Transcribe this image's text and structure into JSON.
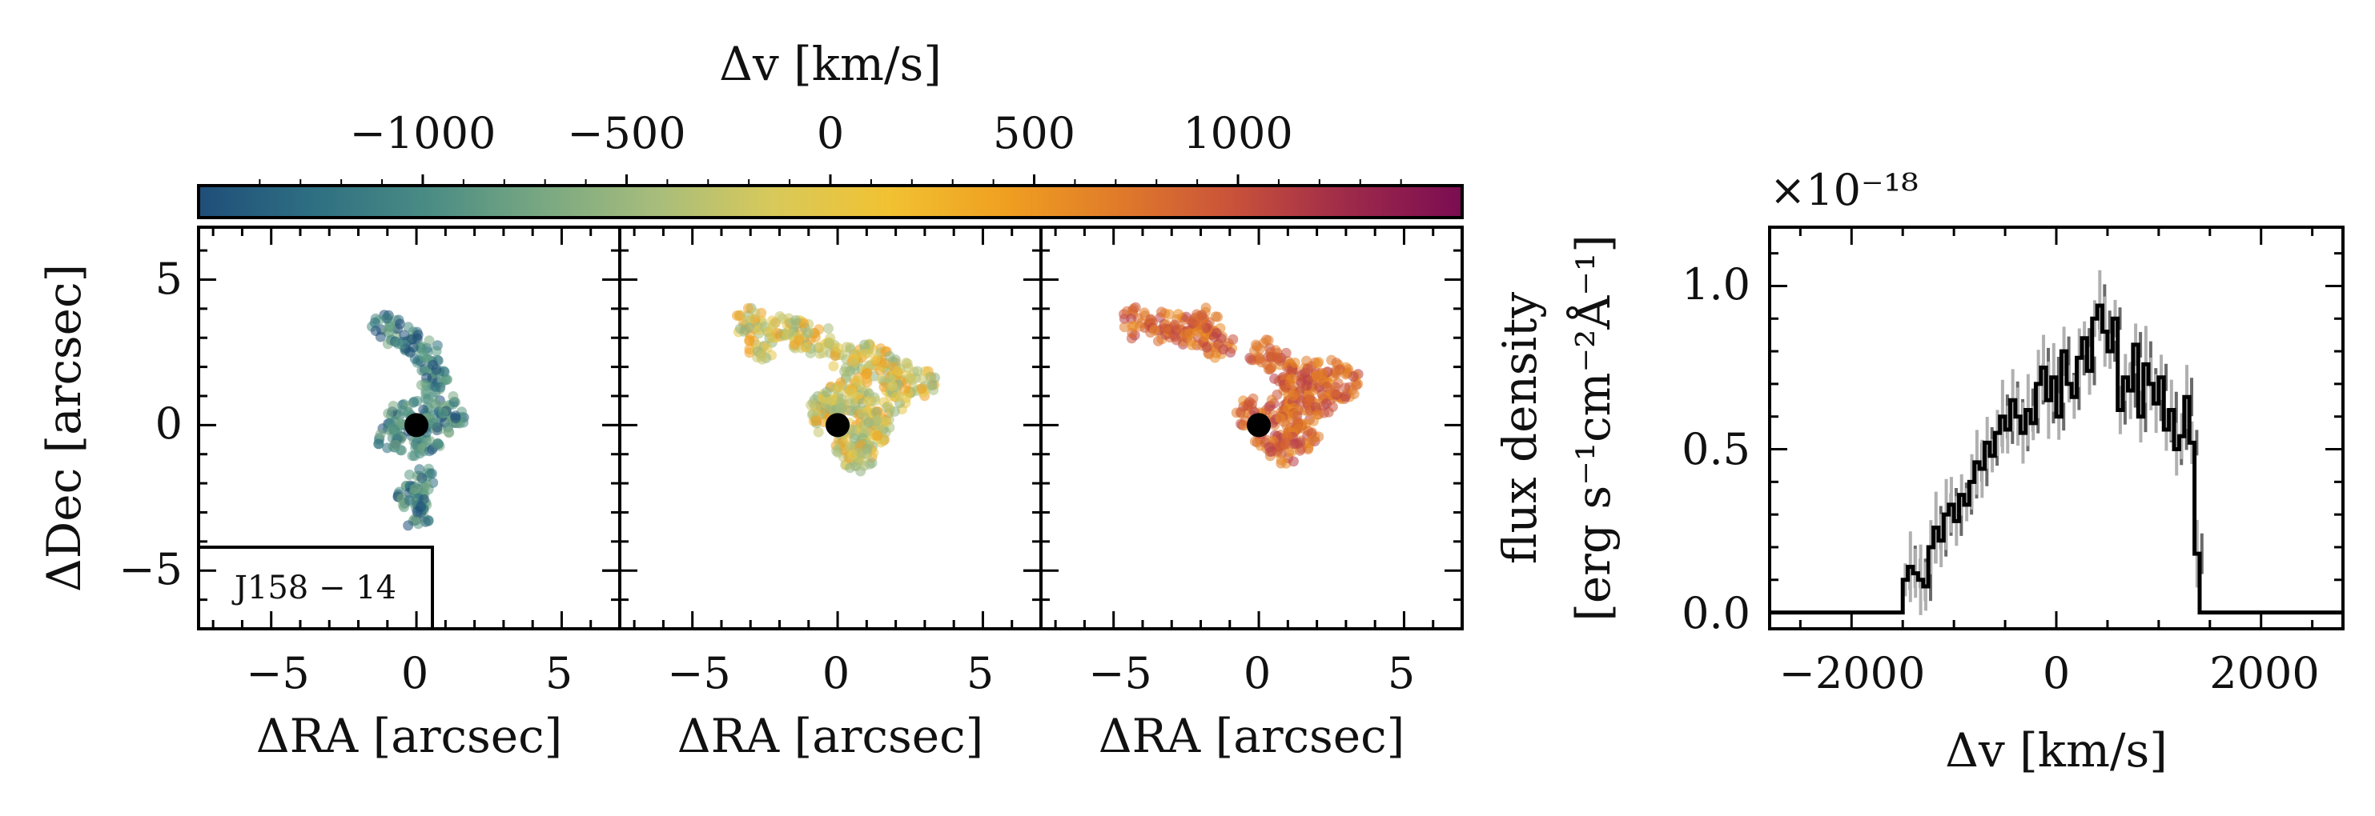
{
  "colorbar": {
    "label": "Δv [km/s]",
    "ticks": [
      -1000,
      -500,
      0,
      500,
      1000
    ],
    "tick_labels": [
      "−1000",
      "−500",
      "0",
      "500",
      "1000"
    ],
    "range": [
      -1550,
      1550
    ],
    "colormap": [
      "#1f4e79",
      "#2e6f82",
      "#4a8c84",
      "#79a882",
      "#a8bd7b",
      "#d8c95a",
      "#f1c232",
      "#f0a020",
      "#e07b2a",
      "#c9523a",
      "#9e2a4a",
      "#7a0c52"
    ]
  },
  "panels": [
    {
      "label": "J158 − 14",
      "xlabel": "ΔRA [arcsec]",
      "ylabel": "ΔDec [arcsec]",
      "xlim": [
        -7.5,
        7
      ],
      "ylim": [
        -7,
        6.8
      ],
      "xtick_labels": [
        "−5",
        "0",
        "5"
      ],
      "ytick_labels": [
        "5",
        "0",
        "−5"
      ],
      "velocity_range": "blue"
    },
    {
      "xlabel": "ΔRA [arcsec]",
      "xlim": [
        -7.5,
        7
      ],
      "ylim": [
        -7,
        6.8
      ],
      "xtick_labels": [
        "−5",
        "0",
        "5"
      ],
      "velocity_range": "green"
    },
    {
      "xlabel": "ΔRA [arcsec]",
      "xlim": [
        -7.5,
        7
      ],
      "ylim": [
        -7,
        6.8
      ],
      "xtick_labels": [
        "−5",
        "0",
        "5"
      ],
      "velocity_range": "red"
    }
  ],
  "spectrum": {
    "xlabel": "Δv [km/s]",
    "ylabel_line1": "flux density",
    "ylabel_line2": "[erg s⁻¹cm⁻²Å⁻¹]",
    "offset": "×10⁻¹⁸",
    "xtick_labels": [
      "−2000",
      "0",
      "2000"
    ],
    "ytick_labels": [
      "0.0",
      "0.5",
      "1.0"
    ]
  },
  "chart_data": [
    {
      "type": "scatter",
      "title": "",
      "label": "J158 − 14",
      "xlabel": "ΔRA [arcsec]",
      "ylabel": "ΔDec [arcsec]",
      "xlim": [
        -7.5,
        7
      ],
      "ylim": [
        -7,
        6.8
      ],
      "color": "Δv (blue-shifted, ≈ −1000 to −400 km/s)",
      "center_marker": [
        0,
        0
      ],
      "clumps": [
        [
          -1.0,
          3.3
        ],
        [
          -0.3,
          3.0
        ],
        [
          0.3,
          2.4
        ],
        [
          0.6,
          1.6
        ],
        [
          0.8,
          0.8
        ],
        [
          0.2,
          0.4
        ],
        [
          -0.6,
          0.2
        ],
        [
          -0.9,
          -0.3
        ],
        [
          -0.2,
          -0.6
        ],
        [
          0.5,
          -0.4
        ],
        [
          1.1,
          0.2
        ],
        [
          0.1,
          -1.9
        ],
        [
          -0.1,
          -2.5
        ],
        [
          0.0,
          -3.0
        ]
      ]
    },
    {
      "type": "scatter",
      "xlabel": "ΔRA [arcsec]",
      "xlim": [
        -7.5,
        7
      ],
      "ylim": [
        -7,
        6.8
      ],
      "color": "Δv (near systemic, ≈ −300 to +300 km/s)",
      "center_marker": [
        0,
        0
      ],
      "clumps": [
        [
          -3.0,
          3.5
        ],
        [
          -2.6,
          2.8
        ],
        [
          -2.0,
          3.4
        ],
        [
          -1.3,
          3.1
        ],
        [
          -0.6,
          2.9
        ],
        [
          0.3,
          2.3
        ],
        [
          1.0,
          2.4
        ],
        [
          1.6,
          2.0
        ],
        [
          2.3,
          1.6
        ],
        [
          2.9,
          1.4
        ],
        [
          0.7,
          1.4
        ],
        [
          0.3,
          0.6
        ],
        [
          -0.6,
          0.6
        ],
        [
          0.9,
          0.6
        ],
        [
          1.4,
          0.2
        ],
        [
          0.4,
          -0.4
        ],
        [
          1.2,
          -0.2
        ],
        [
          0.5,
          -0.9
        ],
        [
          0.8,
          -1.1
        ],
        [
          -0.4,
          0.2
        ],
        [
          0.0,
          1.0
        ],
        [
          2.0,
          1.0
        ]
      ]
    },
    {
      "type": "scatter",
      "xlabel": "ΔRA [arcsec]",
      "xlim": [
        -7.5,
        7
      ],
      "ylim": [
        -7,
        6.8
      ],
      "color": "Δv (red-shifted, ≈ +400 to +1200 km/s)",
      "center_marker": [
        0,
        0
      ],
      "clumps": [
        [
          -4.2,
          3.5
        ],
        [
          -3.4,
          3.4
        ],
        [
          -2.6,
          3.3
        ],
        [
          -2.0,
          3.2
        ],
        [
          -1.4,
          2.8
        ],
        [
          -1.8,
          3.5
        ],
        [
          0.2,
          2.4
        ],
        [
          0.8,
          2.0
        ],
        [
          1.3,
          1.6
        ],
        [
          1.8,
          1.7
        ],
        [
          2.5,
          1.8
        ],
        [
          1.2,
          1.0
        ],
        [
          0.6,
          0.5
        ],
        [
          1.5,
          0.6
        ],
        [
          2.2,
          0.8
        ],
        [
          1.0,
          -0.1
        ],
        [
          1.6,
          -0.3
        ],
        [
          0.4,
          -0.6
        ],
        [
          0.9,
          -0.8
        ],
        [
          -0.3,
          0.4
        ],
        [
          3.0,
          1.4
        ]
      ]
    },
    {
      "type": "line",
      "title": "",
      "xlabel": "Δv [km/s]",
      "ylabel": "flux density [erg s⁻¹cm⁻²Å⁻¹]",
      "y_scale_factor": "×10⁻¹⁸",
      "xlim": [
        -2800,
        2800
      ],
      "ylim": [
        -0.05,
        1.18
      ],
      "step": true,
      "x": [
        -2800,
        -1550,
        -1500,
        -1450,
        -1400,
        -1350,
        -1300,
        -1250,
        -1200,
        -1150,
        -1100,
        -1050,
        -1000,
        -950,
        -900,
        -850,
        -800,
        -750,
        -700,
        -650,
        -600,
        -550,
        -500,
        -450,
        -400,
        -350,
        -300,
        -250,
        -200,
        -150,
        -100,
        -50,
        0,
        50,
        100,
        150,
        200,
        250,
        300,
        350,
        400,
        450,
        500,
        550,
        600,
        650,
        700,
        750,
        800,
        850,
        900,
        950,
        1000,
        1050,
        1100,
        1150,
        1200,
        1250,
        1300,
        1350,
        1400,
        1450,
        2800
      ],
      "y": [
        0.0,
        0.0,
        0.1,
        0.14,
        0.12,
        0.1,
        0.08,
        0.2,
        0.26,
        0.22,
        0.3,
        0.33,
        0.28,
        0.36,
        0.33,
        0.4,
        0.46,
        0.44,
        0.52,
        0.48,
        0.55,
        0.6,
        0.56,
        0.65,
        0.6,
        0.55,
        0.62,
        0.58,
        0.7,
        0.75,
        0.65,
        0.72,
        0.6,
        0.8,
        0.7,
        0.66,
        0.78,
        0.84,
        0.74,
        0.9,
        0.94,
        0.86,
        0.8,
        0.9,
        0.62,
        0.72,
        0.68,
        0.82,
        0.6,
        0.76,
        0.7,
        0.64,
        0.72,
        0.56,
        0.62,
        0.5,
        0.54,
        0.66,
        0.52,
        0.18,
        0.0,
        0.0,
        0.0
      ]
    }
  ]
}
